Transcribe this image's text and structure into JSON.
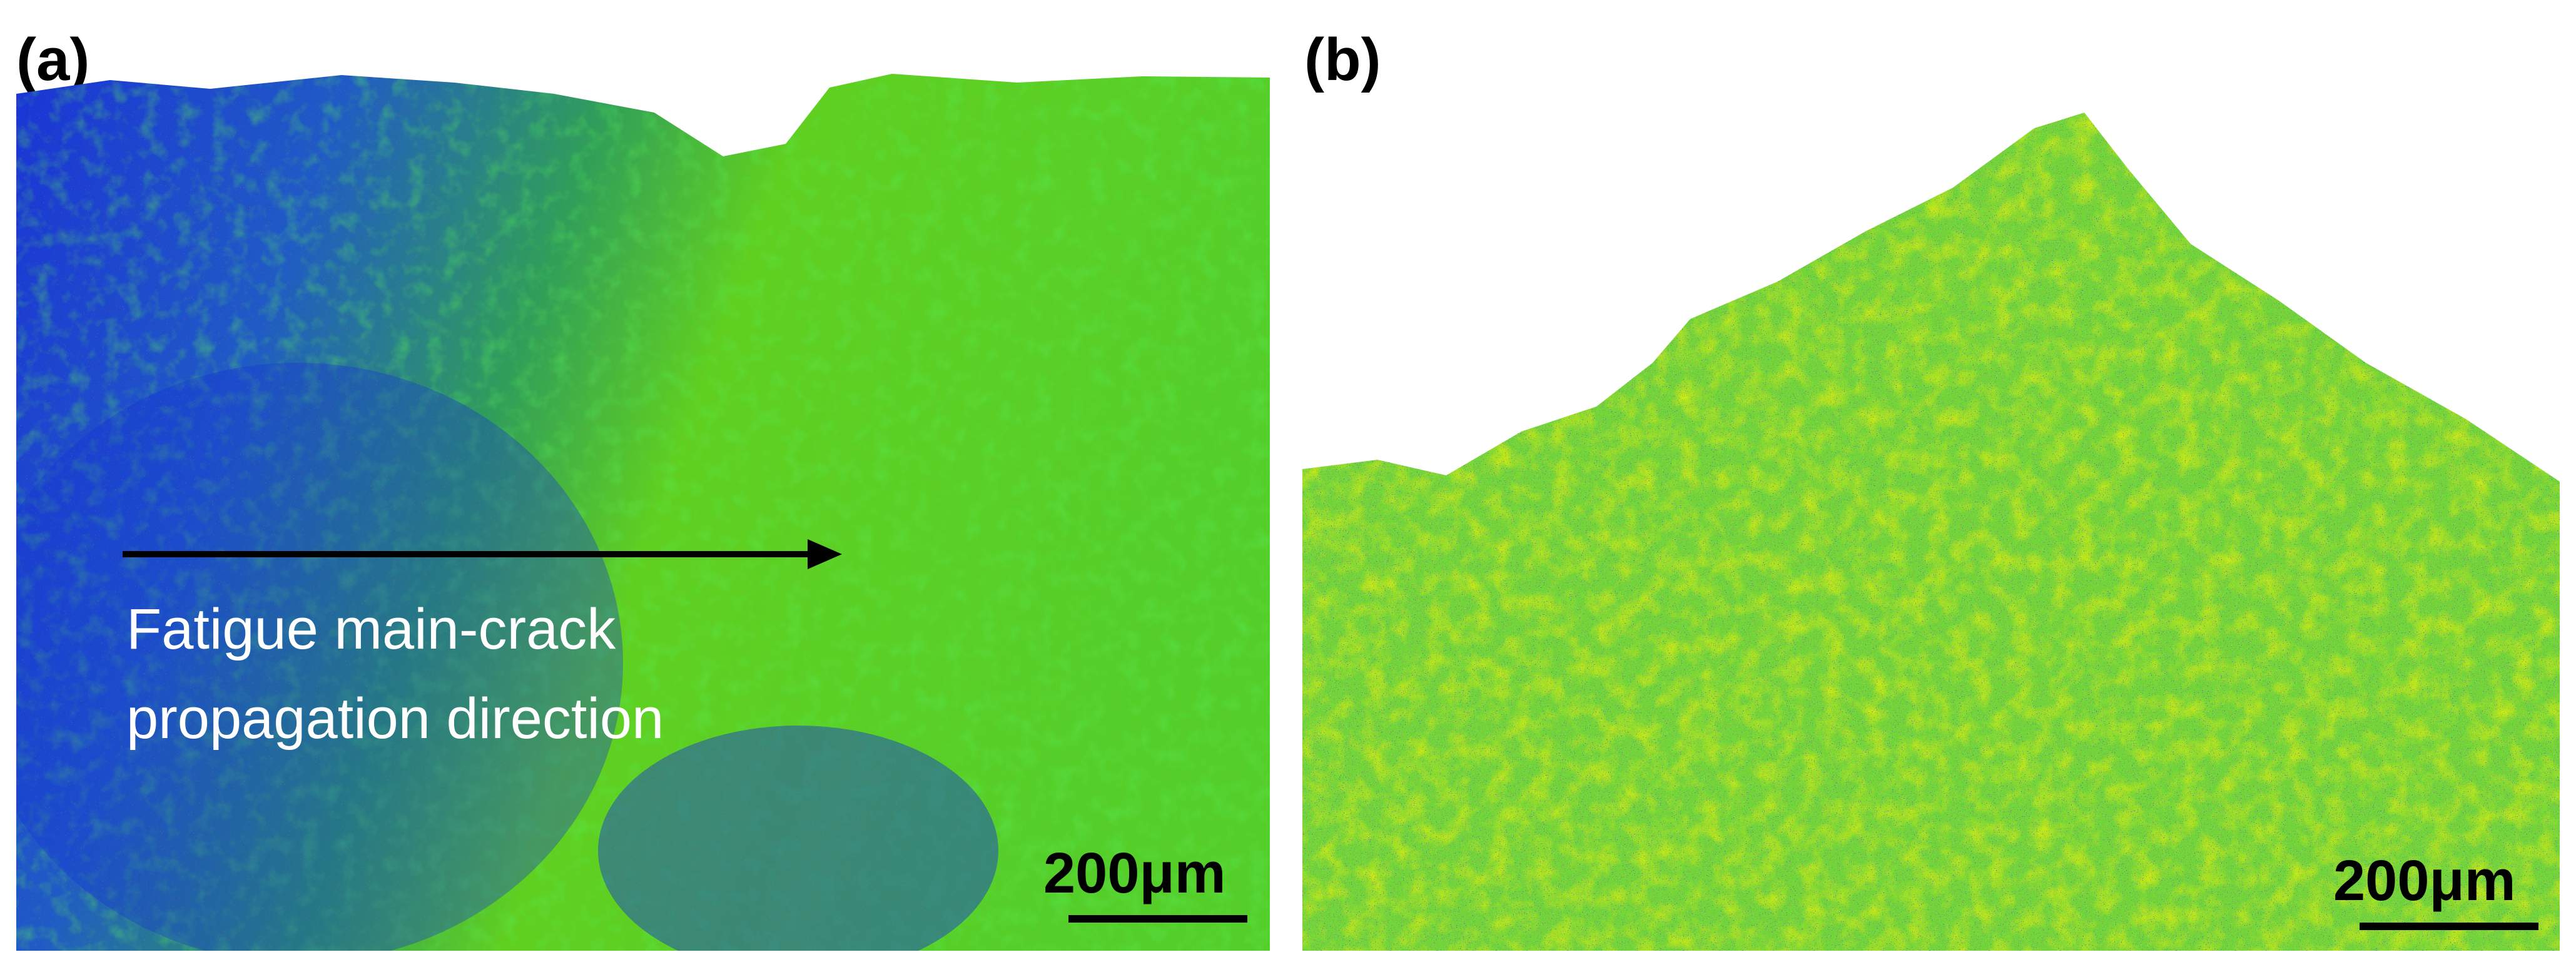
{
  "panels": {
    "a": {
      "label": "(a)",
      "scale_bar": "200μm"
    },
    "b": {
      "label": "(b)",
      "scale_bar": "200μm"
    }
  },
  "annotation": {
    "line1": "Fatigue main-crack",
    "line2": "propagation direction"
  },
  "colors": {
    "blue": "#1010d0",
    "green": "#2ecc33",
    "yellow_green": "#b8f000",
    "yellow": "#f0f000",
    "red": "#ff2010",
    "arrow": "#000000",
    "annotation_text": "#ffffff"
  }
}
